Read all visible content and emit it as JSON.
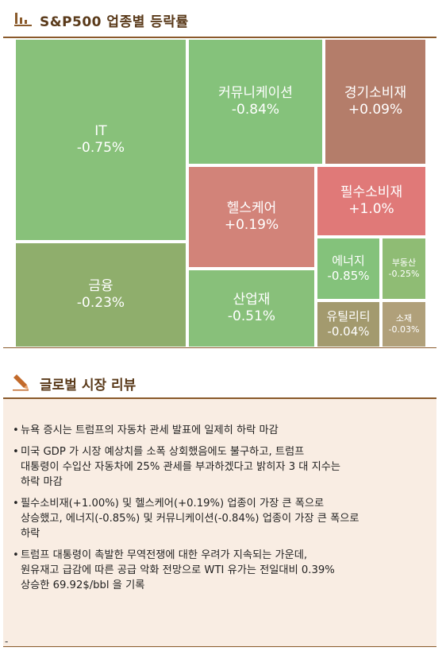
{
  "header": {
    "title": "S&P500 업종별 등락률",
    "icon": "bar-chart-icon"
  },
  "chart_data": {
    "type": "treemap",
    "title": "S&P500 업종별 등락률",
    "sectors": [
      {
        "name": "IT",
        "change": "-0.75%",
        "value": -0.75,
        "color": "#88c17a"
      },
      {
        "name": "금융",
        "change": "-0.23%",
        "value": -0.23,
        "color": "#8fae6c"
      },
      {
        "name": "커뮤니케이션",
        "change": "-0.84%",
        "value": -0.84,
        "color": "#85c27b"
      },
      {
        "name": "경기소비재",
        "change": "+0.09%",
        "value": 0.09,
        "color": "#b47d6a"
      },
      {
        "name": "헬스케어",
        "change": "+0.19%",
        "value": 0.19,
        "color": "#d28379"
      },
      {
        "name": "필수소비재",
        "change": "+1.0%",
        "value": 1.0,
        "color": "#e07978"
      },
      {
        "name": "산업재",
        "change": "-0.51%",
        "value": -0.51,
        "color": "#88c07a"
      },
      {
        "name": "에너지",
        "change": "-0.85%",
        "value": -0.85,
        "color": "#84c27b"
      },
      {
        "name": "부동산",
        "change": "-0.25%",
        "value": -0.25,
        "color": "#8fbc74"
      },
      {
        "name": "유틸리티",
        "change": "-0.04%",
        "value": -0.04,
        "color": "#a39a6e"
      },
      {
        "name": "소재",
        "change": "-0.03%",
        "value": -0.03,
        "color": "#b0a07a"
      }
    ]
  },
  "review": {
    "title": "글로벌 시장 리뷰",
    "icon": "pencil-icon",
    "bullets": [
      {
        "lines": [
          "뉴욕 증시는 트럼프의 자동차 관세 발표에 일제히 하락 마감"
        ]
      },
      {
        "lines": [
          "미국 GDP 가 시장 예상치를 소폭 상회했음에도 불구하고, 트럼프",
          "대통령이 수입산 자동차에 25% 관세를 부과하겠다고 밝히자 3 대 지수는",
          "하락 마감"
        ]
      },
      {
        "lines": [
          "필수소비재(+1.00%) 및 헬스케어(+0.19%) 업종이 가장 큰 폭으로",
          "상승했고, 에너지(-0.85%) 및 커뮤니케이션(-0.84%) 업종이 가장 큰 폭으로",
          "하락"
        ]
      },
      {
        "lines": [
          "트럼프 대통령이 촉발한 무역전쟁에 대한 우려가 지속되는 가운데,",
          "원유재고 급감에 따른 공급 악화 전망으로 WTI 유가는 전일대비 0.39%",
          "상승한 69.92$/bbl 을 기록"
        ]
      }
    ],
    "footer_mark": "-"
  }
}
